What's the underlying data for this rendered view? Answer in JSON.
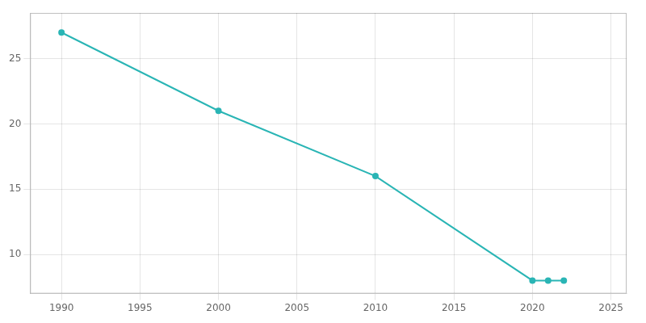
{
  "chart_data": {
    "type": "line",
    "x": [
      1990,
      2000,
      2010,
      2020,
      2021,
      2022
    ],
    "values": [
      27,
      21,
      16,
      8,
      8,
      8
    ],
    "color": "#2ab5b5",
    "marker": "circle",
    "xlim": [
      1988,
      2026
    ],
    "ylim": [
      7,
      28.5
    ],
    "xticks": [
      1990,
      1995,
      2000,
      2005,
      2010,
      2015,
      2020,
      2025
    ],
    "yticks": [
      10,
      15,
      20,
      25
    ],
    "grid": true
  }
}
